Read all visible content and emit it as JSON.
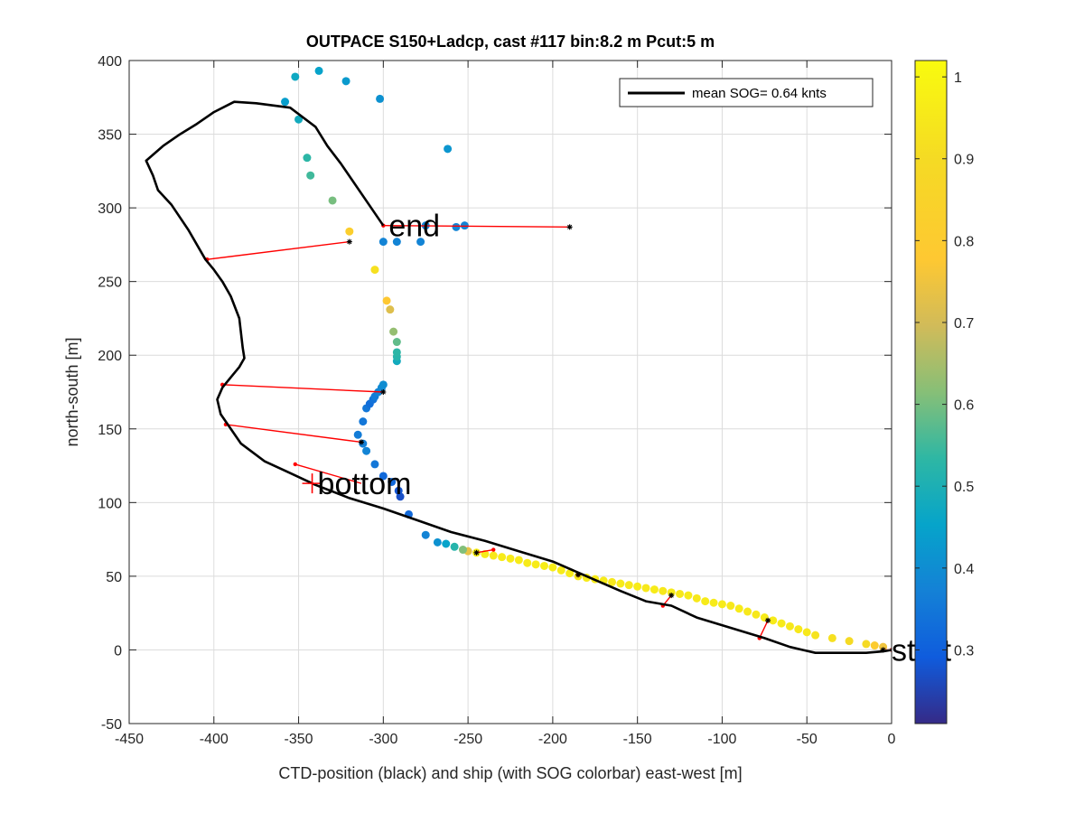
{
  "chart_data": {
    "type": "scatter",
    "title": "OUTPACE S150+Ladcp, cast #117 bin:8.2 m  Pcut:5 m",
    "xlabel": "CTD-position (black) and ship (with SOG colorbar) east-west [m]",
    "ylabel": "north-south [m]",
    "xlim": [
      -450,
      0
    ],
    "ylim": [
      -50,
      400
    ],
    "xticks": [
      "-450",
      "-400",
      "-350",
      "-300",
      "-250",
      "-200",
      "-150",
      "-100",
      "-50",
      "0"
    ],
    "yticks": [
      "-50",
      "0",
      "50",
      "100",
      "150",
      "200",
      "250",
      "300",
      "350",
      "400"
    ],
    "grid": true,
    "legend": {
      "position": "top-right",
      "entries": [
        "mean SOG=  0.64 knts"
      ]
    },
    "colorbar": {
      "colormap": "parula",
      "clim": [
        0.21,
        1.02
      ],
      "ticks": [
        "0.3",
        "0.4",
        "0.5",
        "0.6",
        "0.7",
        "0.8",
        "0.9",
        "1"
      ]
    },
    "annotations": {
      "end": {
        "text": "end",
        "x": -300,
        "y": 288
      },
      "bottom": {
        "text": "bottom",
        "x": -342,
        "y": 113
      },
      "start": {
        "text": "start",
        "x": 0,
        "y": 0
      }
    },
    "ctd_track": {
      "color": "#000000",
      "x": [
        0,
        -5,
        -15,
        -30,
        -45,
        -60,
        -75,
        -95,
        -115,
        -130,
        -145,
        -160,
        -180,
        -200,
        -220,
        -240,
        -260,
        -280,
        -300,
        -320,
        -340,
        -355,
        -370,
        -384,
        -390,
        -393,
        -396,
        -398,
        -395,
        -390,
        -385,
        -382,
        -383,
        -385,
        -390,
        -395,
        -400,
        -405,
        -415,
        -425,
        -433,
        -436,
        -440,
        -430,
        -420,
        -410,
        -400,
        -388,
        -375,
        -355,
        -340,
        -333,
        -325,
        -300
      ],
      "y": [
        0,
        -1,
        -2,
        -2,
        -2,
        2,
        8,
        15,
        22,
        30,
        33,
        40,
        50,
        60,
        67,
        74,
        80,
        88,
        96,
        103,
        112,
        120,
        128,
        140,
        150,
        155,
        160,
        170,
        178,
        185,
        192,
        198,
        205,
        225,
        240,
        250,
        258,
        265,
        285,
        302,
        312,
        322,
        332,
        342,
        350,
        357,
        365,
        372,
        371,
        368,
        355,
        342,
        330,
        288
      ]
    },
    "ship_points": {
      "x": [
        -5,
        -10,
        -15,
        -25,
        -35,
        -45,
        -50,
        -55,
        -60,
        -65,
        -70,
        -75,
        -80,
        -85,
        -90,
        -95,
        -100,
        -105,
        -110,
        -115,
        -120,
        -125,
        -130,
        -135,
        -140,
        -145,
        -150,
        -155,
        -160,
        -165,
        -170,
        -175,
        -180,
        -185,
        -190,
        -195,
        -200,
        -205,
        -210,
        -215,
        -220,
        -225,
        -230,
        -235,
        -240,
        -245,
        -250,
        -253,
        -258,
        -263,
        -268,
        -275,
        -285,
        -290,
        -291,
        -295,
        -300,
        -305,
        -310,
        -312,
        -315,
        -312,
        -310,
        -308,
        -306,
        -305,
        -303,
        -301,
        -300,
        -292,
        -292,
        -292,
        -292,
        -294,
        -296,
        -298,
        -305,
        -320,
        -330,
        -343,
        -345,
        -350,
        -358,
        -352,
        -338,
        -322,
        -302,
        -262,
        -257,
        -252,
        -275,
        -278,
        -292,
        -300
      ],
      "y": [
        2,
        3,
        4,
        6,
        8,
        10,
        12,
        14,
        16,
        18,
        20,
        22,
        24,
        26,
        28,
        30,
        31,
        32,
        33,
        35,
        37,
        38,
        39,
        40,
        41,
        42,
        43,
        44,
        45,
        46,
        47,
        48,
        49,
        50,
        52,
        54,
        56,
        57,
        58,
        59,
        61,
        62,
        63,
        64,
        65,
        66,
        67,
        68,
        70,
        72,
        73,
        78,
        92,
        104,
        108,
        114,
        118,
        126,
        135,
        140,
        146,
        155,
        164,
        167,
        170,
        172,
        175,
        178,
        180,
        196,
        199,
        202,
        209,
        216,
        231,
        237,
        258,
        284,
        305,
        322,
        334,
        360,
        372,
        389,
        393,
        386,
        374,
        340,
        287,
        288,
        288,
        277,
        277,
        277
      ],
      "sog": [
        0.75,
        0.8,
        0.9,
        0.9,
        0.92,
        0.93,
        0.95,
        0.95,
        0.95,
        0.96,
        0.96,
        0.96,
        0.95,
        0.95,
        0.96,
        0.95,
        0.96,
        0.96,
        0.96,
        0.95,
        0.96,
        0.95,
        0.96,
        0.95,
        0.96,
        0.95,
        0.96,
        0.95,
        0.96,
        0.95,
        0.96,
        0.96,
        0.96,
        0.95,
        0.96,
        0.96,
        0.97,
        0.97,
        0.96,
        0.96,
        0.96,
        0.96,
        0.96,
        0.95,
        0.96,
        0.97,
        0.74,
        0.61,
        0.52,
        0.45,
        0.41,
        0.38,
        0.32,
        0.27,
        0.28,
        0.32,
        0.32,
        0.35,
        0.38,
        0.37,
        0.36,
        0.35,
        0.35,
        0.33,
        0.34,
        0.36,
        0.38,
        0.39,
        0.4,
        0.48,
        0.52,
        0.53,
        0.58,
        0.63,
        0.72,
        0.78,
        0.92,
        0.82,
        0.6,
        0.55,
        0.53,
        0.48,
        0.44,
        0.47,
        0.45,
        0.43,
        0.41,
        0.42,
        0.38,
        0.38,
        0.38,
        0.38,
        0.38,
        0.38
      ]
    },
    "connector_segments": {
      "color": "#ff0000",
      "segments": [
        [
          [
            0,
            0
          ],
          [
            -5,
            0
          ]
        ],
        [
          [
            -78,
            8
          ],
          [
            -73,
            20
          ]
        ],
        [
          [
            -135,
            30
          ],
          [
            -130,
            37
          ]
        ],
        [
          [
            -185,
            51
          ],
          [
            -185,
            51
          ]
        ],
        [
          [
            -235,
            68
          ],
          [
            -245,
            66
          ]
        ],
        [
          [
            -352,
            126
          ],
          [
            -313,
            113
          ]
        ],
        [
          [
            -393,
            153
          ],
          [
            -313,
            141
          ]
        ],
        [
          [
            -395,
            180
          ],
          [
            -300,
            175
          ]
        ],
        [
          [
            -404,
            265
          ],
          [
            -320,
            277
          ]
        ],
        [
          [
            -300,
            288
          ],
          [
            -190,
            287
          ]
        ]
      ]
    },
    "bottom_marker": {
      "x": -342,
      "y": 113
    },
    "black_dots": [
      [
        -5,
        0
      ],
      [
        -73,
        20
      ],
      [
        -130,
        37
      ],
      [
        -185,
        51
      ],
      [
        -245,
        66
      ],
      [
        -313,
        141
      ],
      [
        -300,
        175
      ],
      [
        -320,
        277
      ],
      [
        -190,
        287
      ]
    ]
  }
}
